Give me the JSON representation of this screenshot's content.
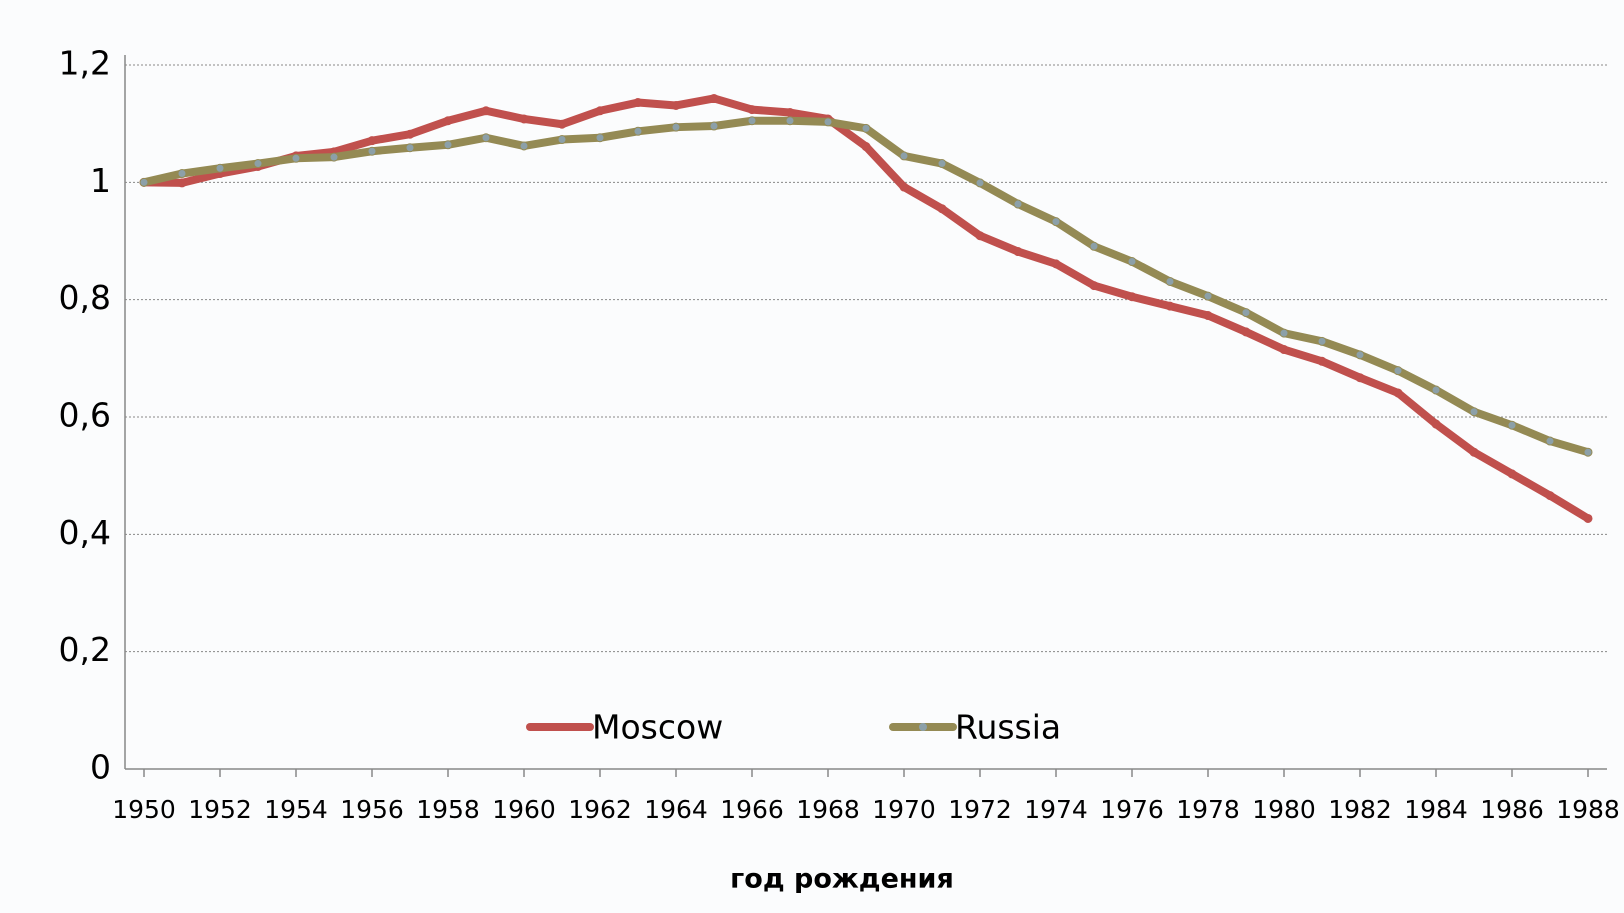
{
  "chart_data": {
    "type": "line",
    "x_label": "год рождения",
    "x": [
      1950,
      1951,
      1952,
      1953,
      1954,
      1955,
      1956,
      1957,
      1958,
      1959,
      1960,
      1961,
      1962,
      1963,
      1964,
      1965,
      1966,
      1967,
      1968,
      1969,
      1970,
      1971,
      1972,
      1973,
      1974,
      1975,
      1976,
      1977,
      1978,
      1979,
      1980,
      1981,
      1982,
      1983,
      1984,
      1985,
      1986,
      1987,
      1988
    ],
    "series": [
      {
        "name": "Moscow",
        "color": "#c0504d",
        "values": [
          1.0,
          0.999,
          1.015,
          1.027,
          1.045,
          1.052,
          1.071,
          1.082,
          1.105,
          1.122,
          1.108,
          1.099,
          1.122,
          1.136,
          1.131,
          1.143,
          1.124,
          1.119,
          1.108,
          1.061,
          0.992,
          0.955,
          0.909,
          0.882,
          0.861,
          0.824,
          0.805,
          0.789,
          0.773,
          0.745,
          0.715,
          0.695,
          0.667,
          0.641,
          0.588,
          0.54,
          0.503,
          0.466,
          0.427
        ]
      },
      {
        "name": "Russia",
        "color": "#948a54",
        "values": [
          1.0,
          1.015,
          1.024,
          1.032,
          1.041,
          1.043,
          1.053,
          1.059,
          1.064,
          1.076,
          1.062,
          1.073,
          1.076,
          1.087,
          1.094,
          1.096,
          1.105,
          1.105,
          1.103,
          1.092,
          1.045,
          1.032,
          0.999,
          0.963,
          0.933,
          0.891,
          0.865,
          0.831,
          0.806,
          0.778,
          0.743,
          0.729,
          0.706,
          0.679,
          0.646,
          0.609,
          0.586,
          0.559,
          0.54
        ]
      }
    ],
    "xlim": [
      1949.5,
      1988.5
    ],
    "xticks": [
      1950,
      1952,
      1954,
      1956,
      1958,
      1960,
      1962,
      1964,
      1966,
      1968,
      1970,
      1972,
      1974,
      1976,
      1978,
      1980,
      1982,
      1984,
      1986,
      1988
    ],
    "ylim": [
      0,
      1.2
    ],
    "yticks": [
      0,
      {
        "value": 0.2,
        "label": "0,2"
      },
      {
        "value": 0.4,
        "label": "0,4"
      },
      {
        "value": 0.6,
        "label": "0,6"
      },
      {
        "value": 0.8,
        "label": "0,8"
      },
      1,
      {
        "value": 1.2,
        "label": "1,2"
      }
    ],
    "grid": true,
    "legend": "bottom"
  }
}
